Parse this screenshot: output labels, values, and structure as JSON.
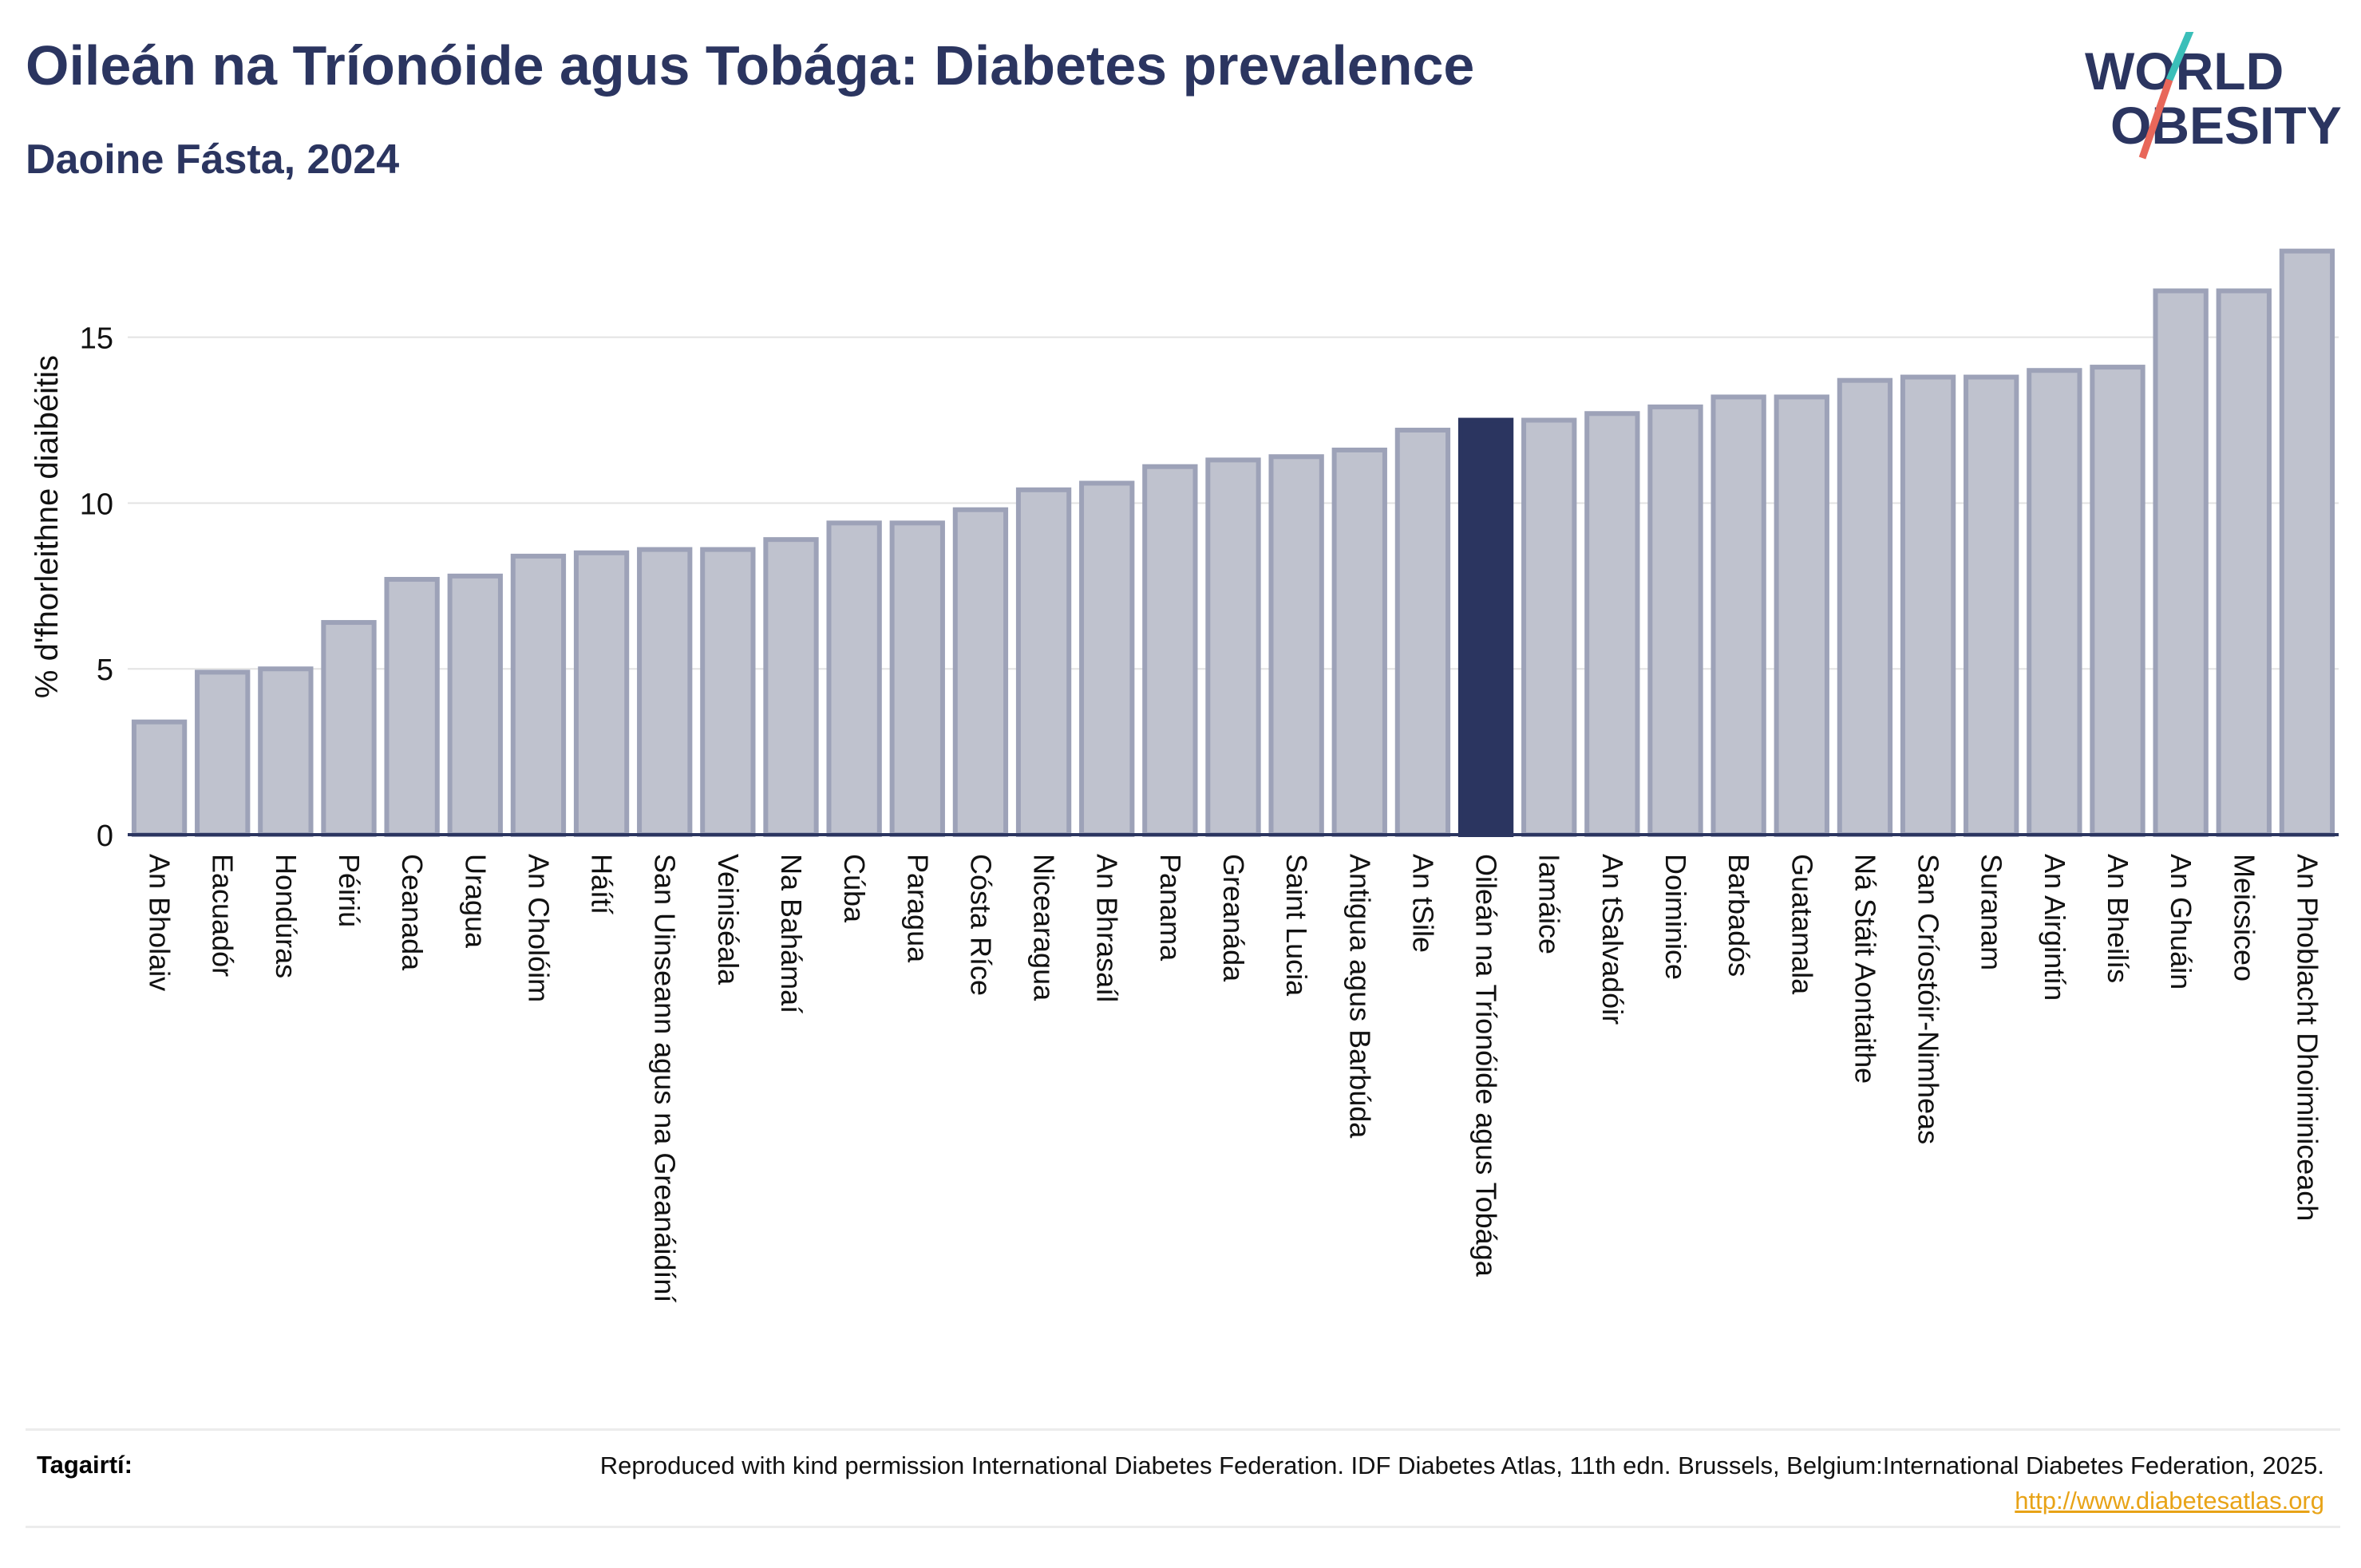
{
  "header": {
    "title": "Oileán na Tríonóide agus Tobága: Diabetes prevalence",
    "subtitle": "Daoine Fásta, 2024"
  },
  "logo": {
    "line1": "WORLD",
    "line2": "OBESITY",
    "colors": {
      "text": "#2b3560",
      "slash_top": "#3bbfb9",
      "slash_bottom": "#e8675a"
    }
  },
  "chart_data": {
    "type": "bar",
    "ylabel": "% d'fhorleithne diaibéitis",
    "ylim": [
      0,
      18
    ],
    "yticks": [
      0,
      5,
      10,
      15
    ],
    "grid": true,
    "highlight": "Oileán na Tríonóide agus Tobága",
    "colors": {
      "bar": "#bfc2ce",
      "bar_edge": "#9da2b8",
      "highlight": "#2b3560"
    },
    "categories": [
      "An Bholaiv",
      "Eacuadór",
      "Hondúras",
      "Péiriú",
      "Ceanada",
      "Uragua",
      "An Cholóim",
      "Háítí",
      "San Uinseann agus na Greanáidíní",
      "Veiniséala",
      "Na Bahámaí",
      "Cúba",
      "Paragua",
      "Cósta Ríce",
      "Nicearagua",
      "An Bhrasaíl",
      "Panama",
      "Greanáda",
      "Saint Lucia",
      "Antigua agus Barbúda",
      "An tSile",
      "Oileán na Tríonóide agus Tobága",
      "Iamáice",
      "An tSalvadóir",
      "Doiminice",
      "Barbadós",
      "Guatamala",
      "Ná Stáit Aontaithe",
      "San Críostóir-Nimheas",
      "Suranam",
      "An Airgintín",
      "An Bheilís",
      "An Ghuáin",
      "Meicsiceo",
      "An Phoblacht Dhoiminiceach"
    ],
    "values": [
      3.4,
      4.9,
      5.0,
      6.4,
      7.7,
      7.8,
      8.4,
      8.5,
      8.6,
      8.6,
      8.9,
      9.4,
      9.4,
      9.8,
      10.4,
      10.6,
      11.1,
      11.3,
      11.4,
      11.6,
      12.2,
      12.5,
      12.5,
      12.7,
      12.9,
      13.2,
      13.2,
      13.7,
      13.8,
      13.8,
      14.0,
      14.1,
      16.4,
      16.4,
      17.6
    ]
  },
  "footer": {
    "label": "Tagairtí:",
    "text": "Reproduced with kind permission International Diabetes Federation. IDF Diabetes Atlas, 11th edn. Brussels, Belgium:International Diabetes Federation, 2025.",
    "link": "http://www.diabetesatlas.org"
  }
}
